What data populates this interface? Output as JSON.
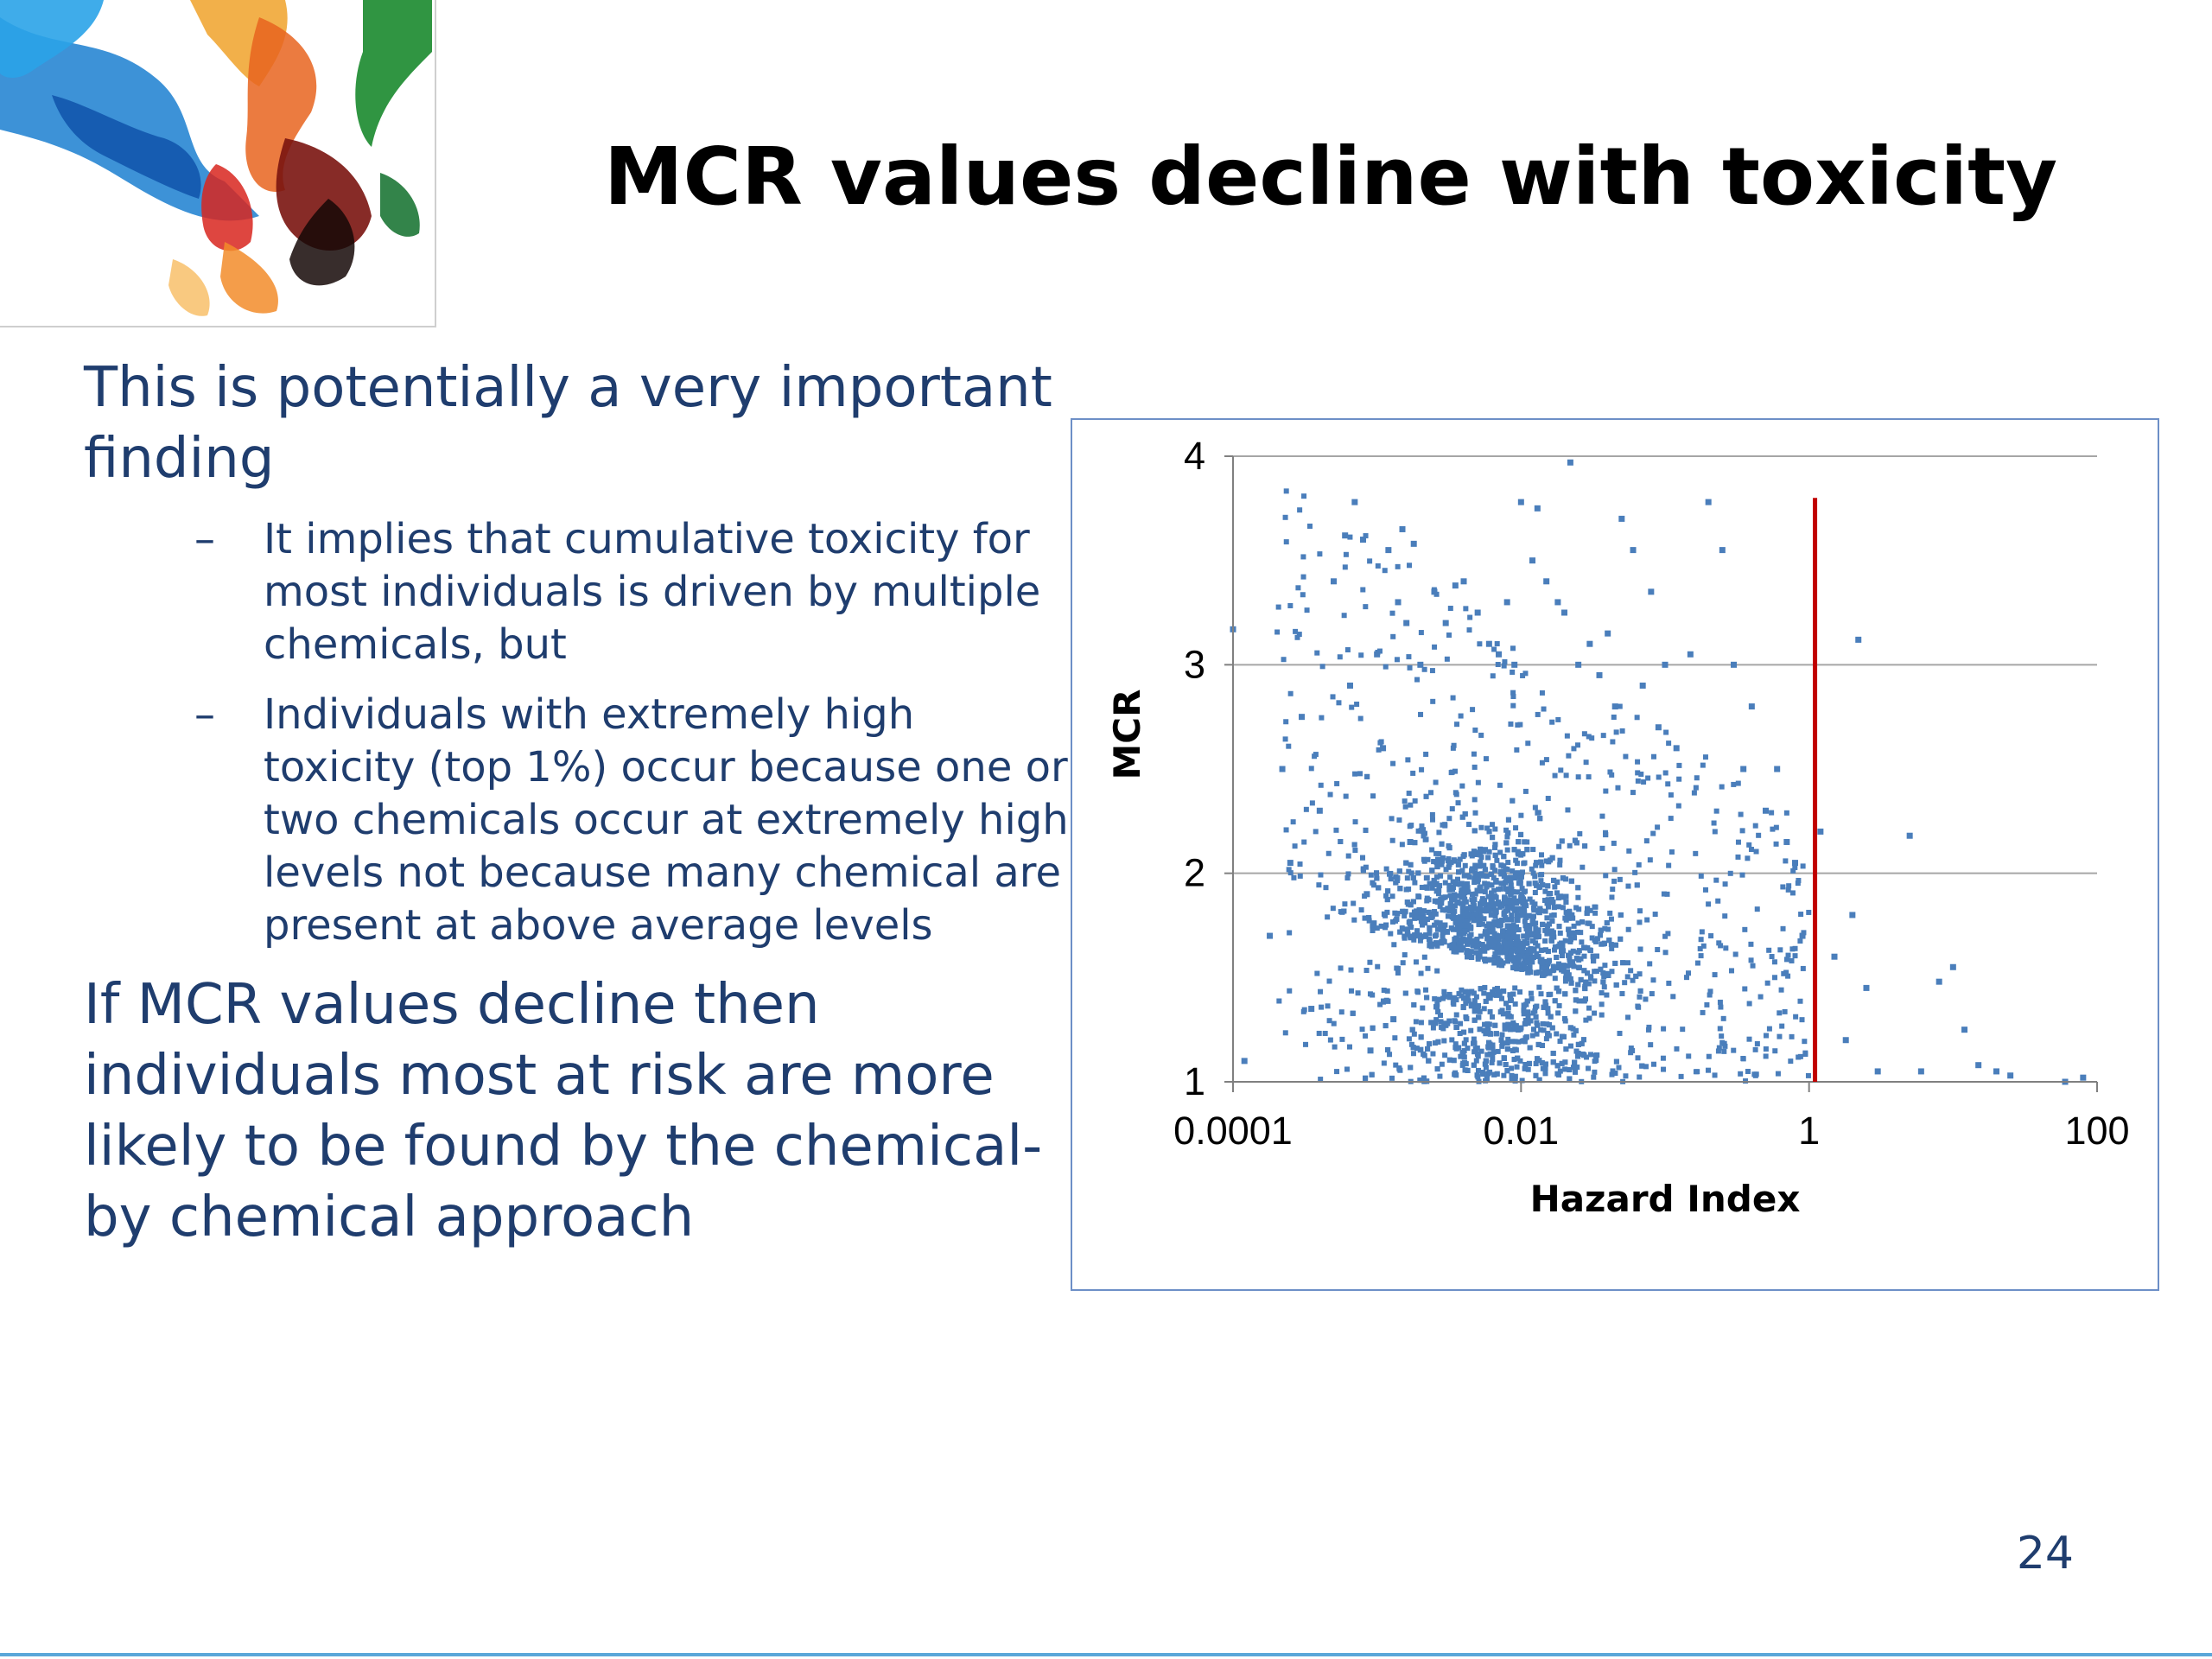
{
  "slide": {
    "title": "MCR values decline with toxicity",
    "page_number": "24"
  },
  "body": {
    "point1": "This is potentially a very important finding",
    "subpoints": [
      {
        "dash": "–",
        "text": "It implies that cumulative toxicity for most individuals is driven by multiple chemicals, but"
      },
      {
        "dash": "–",
        "text": "Individuals with extremely high toxicity (top 1%) occur because one or two chemicals occur at extremely high levels not because many chemical are present at above average levels"
      }
    ],
    "point2": "If MCR values decline then individuals most at risk are more likely to be found by  the chemical-by chemical approach"
  },
  "logo": {
    "icon": "colored-ink-in-water-image"
  },
  "colors": {
    "title": "#000000",
    "body_text": "#1f3d6e",
    "points": "#4a7ebb",
    "reference_line": "#c00000",
    "chart_border": "#6d8fc7",
    "gridline": "#a6a6a6"
  },
  "chart_data": {
    "type": "scatter",
    "xlabel": "Hazard Index",
    "ylabel": "MCR",
    "x_scale": "log",
    "xlim": [
      0.0001,
      100
    ],
    "ylim": [
      1,
      4
    ],
    "x_ticks": [
      0.0001,
      0.01,
      1,
      100
    ],
    "x_tick_labels": [
      "0.0001",
      "0.01",
      "1",
      "100"
    ],
    "y_ticks": [
      1,
      2,
      3,
      4
    ],
    "y_tick_labels": [
      "1",
      "2",
      "3",
      "4"
    ],
    "grid": "horizontal",
    "legend": "none",
    "reference_line": {
      "x": 1.1,
      "y_from": 1,
      "y_to": 3.8
    },
    "series": [
      {
        "points": [
          [
            0.0001,
            3.17
          ],
          [
            0.00012,
            1.1
          ],
          [
            0.00018,
            1.7
          ],
          [
            0.00022,
            2.5
          ],
          [
            0.00025,
            2.05
          ],
          [
            0.0003,
            2.75
          ],
          [
            0.00035,
            1.35
          ],
          [
            0.0004,
            2.3
          ],
          [
            0.0005,
            3.4
          ],
          [
            0.0006,
            3.62
          ],
          [
            0.0007,
            3.78
          ],
          [
            0.0008,
            3.6
          ],
          [
            0.00065,
            2.9
          ],
          [
            0.00085,
            1.9
          ],
          [
            0.0009,
            1.15
          ],
          [
            0.001,
            3.05
          ],
          [
            0.0012,
            3.55
          ],
          [
            0.0015,
            3.65
          ],
          [
            0.0018,
            3.58
          ],
          [
            0.0014,
            3.3
          ],
          [
            0.0016,
            3.2
          ],
          [
            0.0011,
            2.6
          ],
          [
            0.0013,
            1.3
          ],
          [
            0.0017,
            2.15
          ],
          [
            0.002,
            3.0
          ],
          [
            0.0025,
            3.35
          ],
          [
            0.003,
            3.2
          ],
          [
            0.0035,
            3.38
          ],
          [
            0.004,
            3.4
          ],
          [
            0.005,
            3.25
          ],
          [
            0.006,
            3.1
          ],
          [
            0.007,
            3.05
          ],
          [
            0.008,
            3.3
          ],
          [
            0.009,
            3.0
          ],
          [
            0.01,
            3.78
          ],
          [
            0.012,
            3.5
          ],
          [
            0.013,
            3.75
          ],
          [
            0.015,
            3.4
          ],
          [
            0.018,
            3.3
          ],
          [
            0.02,
            3.25
          ],
          [
            0.022,
            3.97
          ],
          [
            0.025,
            3.0
          ],
          [
            0.03,
            3.1
          ],
          [
            0.035,
            2.95
          ],
          [
            0.04,
            3.15
          ],
          [
            0.045,
            2.8
          ],
          [
            0.05,
            3.7
          ],
          [
            0.06,
            3.55
          ],
          [
            0.07,
            2.9
          ],
          [
            0.08,
            3.35
          ],
          [
            0.09,
            2.7
          ],
          [
            0.1,
            3.0
          ],
          [
            0.12,
            2.6
          ],
          [
            0.15,
            3.05
          ],
          [
            0.2,
            3.78
          ],
          [
            0.25,
            3.55
          ],
          [
            0.3,
            3.0
          ],
          [
            0.35,
            2.5
          ],
          [
            0.4,
            2.8
          ],
          [
            0.5,
            2.3
          ],
          [
            0.6,
            2.5
          ],
          [
            0.7,
            2.15
          ],
          [
            0.8,
            2.05
          ],
          [
            0.9,
            1.7
          ],
          [
            1.2,
            2.2
          ],
          [
            1.5,
            1.6
          ],
          [
            1.8,
            1.2
          ],
          [
            2.0,
            1.8
          ],
          [
            2.2,
            3.12
          ],
          [
            2.5,
            1.45
          ],
          [
            3.0,
            1.05
          ],
          [
            5.0,
            2.18
          ],
          [
            6.0,
            1.05
          ],
          [
            8.0,
            1.48
          ],
          [
            10.0,
            1.55
          ],
          [
            12.0,
            1.25
          ],
          [
            15.0,
            1.08
          ],
          [
            20.0,
            1.05
          ],
          [
            25.0,
            1.03
          ],
          [
            60.0,
            1.0
          ],
          [
            80.0,
            1.02
          ]
        ]
      }
    ]
  }
}
